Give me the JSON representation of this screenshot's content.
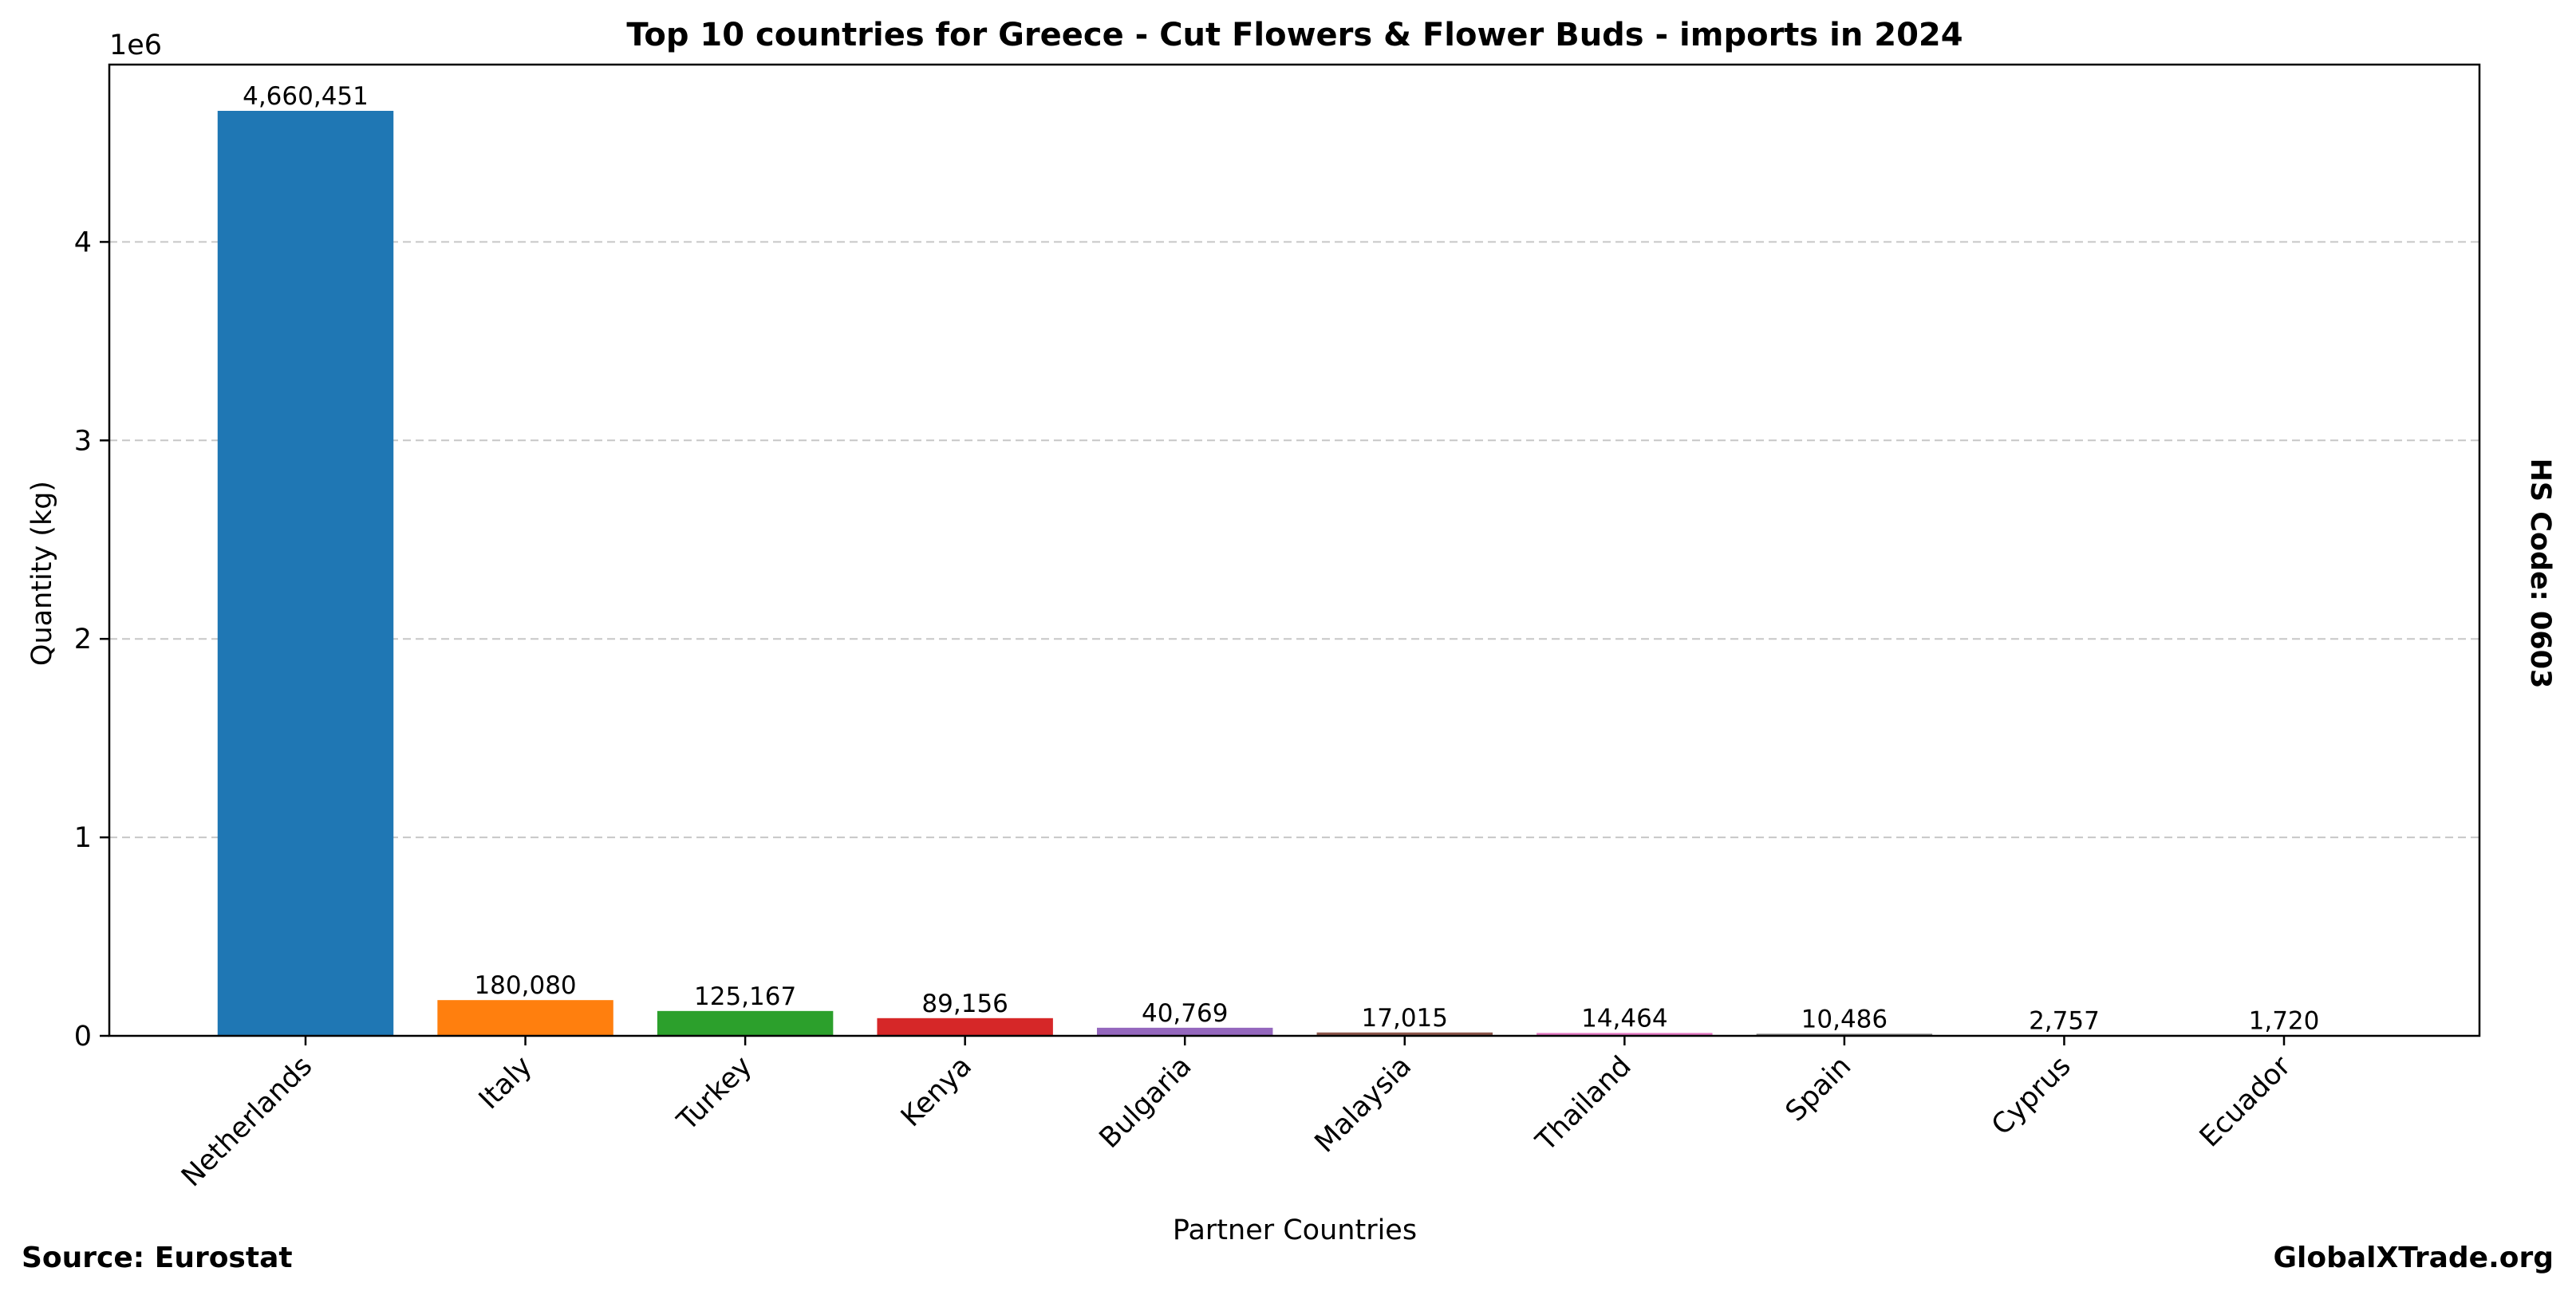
{
  "chart_data": {
    "type": "bar",
    "title": "Top 10 countries for Greece - Cut Flowers & Flower Buds - imports in 2024",
    "xlabel": "Partner Countries",
    "ylabel": "Quantity (kg)",
    "y_offset_label": "1e6",
    "y_scale_factor": 1000000,
    "ylim": [
      0,
      4893473
    ],
    "yticks": [
      0,
      1000000,
      2000000,
      3000000,
      4000000
    ],
    "ytick_labels": [
      "0",
      "1",
      "2",
      "3",
      "4"
    ],
    "grid": "horizontal dashed",
    "categories": [
      "Netherlands",
      "Italy",
      "Turkey",
      "Kenya",
      "Bulgaria",
      "Malaysia",
      "Thailand",
      "Spain",
      "Cyprus",
      "Ecuador"
    ],
    "values": [
      4660451,
      180080,
      125167,
      89156,
      40769,
      17015,
      14464,
      10486,
      2757,
      1720
    ],
    "value_labels": [
      "4,660,451",
      "180,080",
      "125,167",
      "89,156",
      "40,769",
      "17,015",
      "14,464",
      "10,486",
      "2,757",
      "1,720"
    ],
    "colors": [
      "#1f77b4",
      "#ff7f0e",
      "#2ca02c",
      "#d62728",
      "#9467bd",
      "#8c564b",
      "#e377c2",
      "#7f7f7f",
      "#bcbd22",
      "#17becf"
    ]
  },
  "annotations": {
    "side_label": "HS Code: 0603",
    "source": "Source: Eurostat",
    "site": "GlobalXTrade.org"
  }
}
